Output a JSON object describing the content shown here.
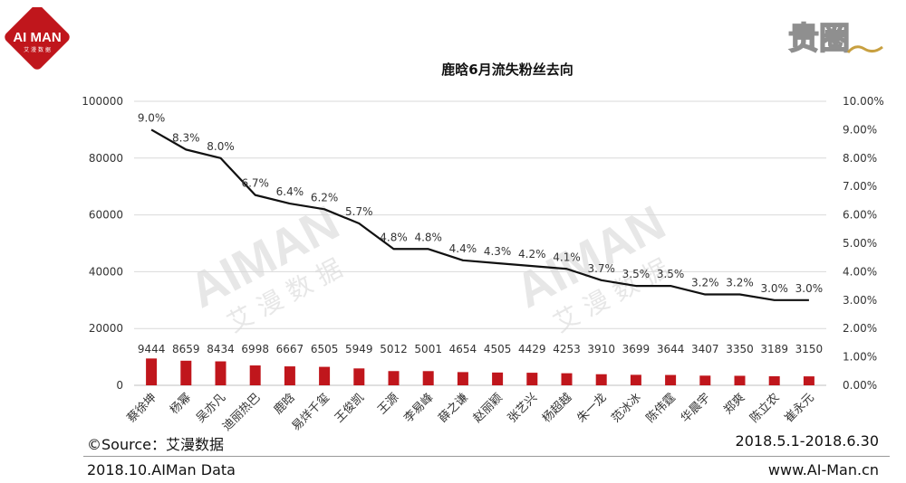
{
  "brand": {
    "logo_text": "AI MAN",
    "logo_sub": "艾 漫 数 据",
    "mark_text": "贵圈",
    "watermark_main": "AIMAN",
    "watermark_sub": "艾 漫 数 据",
    "accent_color": "#c0161c"
  },
  "footer": {
    "source": "©Source：艾漫数据",
    "period": "2018.5.1-2018.6.30",
    "report": "2018.10.AIMan Data",
    "site": "www.AI-Man.cn"
  },
  "chart_data": {
    "type": "bar",
    "title": "鹿晗6月流失粉丝去向",
    "categories": [
      "蔡徐坤",
      "杨幂",
      "吴亦凡",
      "迪丽热巴",
      "鹿晗",
      "易烊千玺",
      "王俊凯",
      "王源",
      "李易峰",
      "薛之谦",
      "赵丽颖",
      "张艺兴",
      "杨超越",
      "朱一龙",
      "范冰冰",
      "陈伟霆",
      "华晨宇",
      "郑爽",
      "陈立农",
      "崔永元"
    ],
    "series": [
      {
        "type": "bar",
        "color": "#c0161c",
        "values": [
          9444,
          8659,
          8434,
          6998,
          6667,
          6505,
          5949,
          5012,
          5001,
          4654,
          4505,
          4429,
          4253,
          3910,
          3699,
          3644,
          3407,
          3350,
          3189,
          3150
        ]
      },
      {
        "type": "line",
        "color": "#111111",
        "axis": "right",
        "values": [
          9.0,
          8.3,
          8.0,
          6.7,
          6.4,
          6.2,
          5.7,
          4.8,
          4.8,
          4.4,
          4.3,
          4.2,
          4.1,
          3.7,
          3.5,
          3.5,
          3.2,
          3.2,
          3.0,
          3.0
        ],
        "labels": [
          "9.0%",
          "8.3%",
          "8.0%",
          "6.7%",
          "6.4%",
          "6.2%",
          "5.7%",
          "4.8%",
          "4.8%",
          "4.4%",
          "4.3%",
          "4.2%",
          "4.1%",
          "3.7%",
          "3.5%",
          "3.5%",
          "3.2%",
          "3.2%",
          "3.0%",
          "3.0%"
        ]
      }
    ],
    "ylim": [
      0,
      100000
    ],
    "yticks": [
      "0",
      "20000",
      "40000",
      "60000",
      "80000",
      "100000"
    ],
    "y2lim": [
      0,
      10
    ],
    "y2ticks": [
      "0.00%",
      "1.00%",
      "2.00%",
      "3.00%",
      "4.00%",
      "5.00%",
      "6.00%",
      "7.00%",
      "8.00%",
      "9.00%",
      "10.00%"
    ],
    "grid": true,
    "legend": "none"
  }
}
